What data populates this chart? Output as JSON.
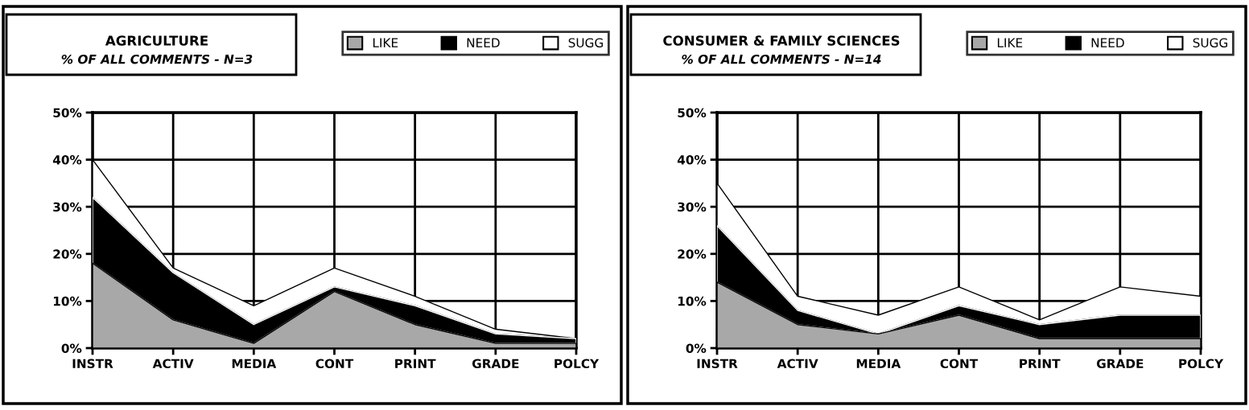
{
  "chart_data": [
    {
      "type": "area",
      "stacked": true,
      "title": "AGRICULTURE",
      "subtitle": "% OF ALL COMMENTS - N=3",
      "categories": [
        "INSTR",
        "ACTIV",
        "MEDIA",
        "CONT",
        "PRINT",
        "GRADE",
        "POLCY"
      ],
      "series": [
        {
          "name": "LIKE",
          "color": "#a8a8a8",
          "values": [
            18,
            6,
            1,
            12,
            5,
            1,
            1
          ]
        },
        {
          "name": "NEED",
          "color": "#000000",
          "values": [
            14,
            10,
            4,
            1,
            4,
            2,
            1
          ]
        },
        {
          "name": "SUGG",
          "color": "#ffffff",
          "values": [
            8,
            1,
            4,
            4,
            2,
            1,
            0
          ]
        }
      ],
      "ylim": [
        0,
        50
      ],
      "yticks": [
        {
          "value": 0,
          "label": "0%"
        },
        {
          "value": 10,
          "label": "10%"
        },
        {
          "value": 20,
          "label": "20%"
        },
        {
          "value": 30,
          "label": "30%"
        },
        {
          "value": 40,
          "label": "40%"
        },
        {
          "value": 50,
          "label": "50%"
        }
      ],
      "grid": true,
      "legend": "top right"
    },
    {
      "type": "area",
      "stacked": true,
      "title": "CONSUMER & FAMILY SCIENCES",
      "subtitle": "% OF ALL COMMENTS - N=14",
      "categories": [
        "INSTR",
        "ACTIV",
        "MEDIA",
        "CONT",
        "PRINT",
        "GRADE",
        "POLCY"
      ],
      "series": [
        {
          "name": "LIKE",
          "color": "#a8a8a8",
          "values": [
            14,
            5,
            3,
            7,
            2,
            2,
            2
          ]
        },
        {
          "name": "NEED",
          "color": "#000000",
          "values": [
            12,
            3,
            0,
            2,
            3,
            5,
            5
          ]
        },
        {
          "name": "SUGG",
          "color": "#ffffff",
          "values": [
            9,
            3,
            4,
            4,
            1,
            6,
            4
          ]
        }
      ],
      "ylim": [
        0,
        50
      ],
      "yticks": [
        {
          "value": 0,
          "label": "0%"
        },
        {
          "value": 10,
          "label": "10%"
        },
        {
          "value": 20,
          "label": "20%"
        },
        {
          "value": 30,
          "label": "30%"
        },
        {
          "value": 40,
          "label": "40%"
        },
        {
          "value": 50,
          "label": "50%"
        }
      ],
      "grid": true,
      "legend": "top right"
    }
  ]
}
